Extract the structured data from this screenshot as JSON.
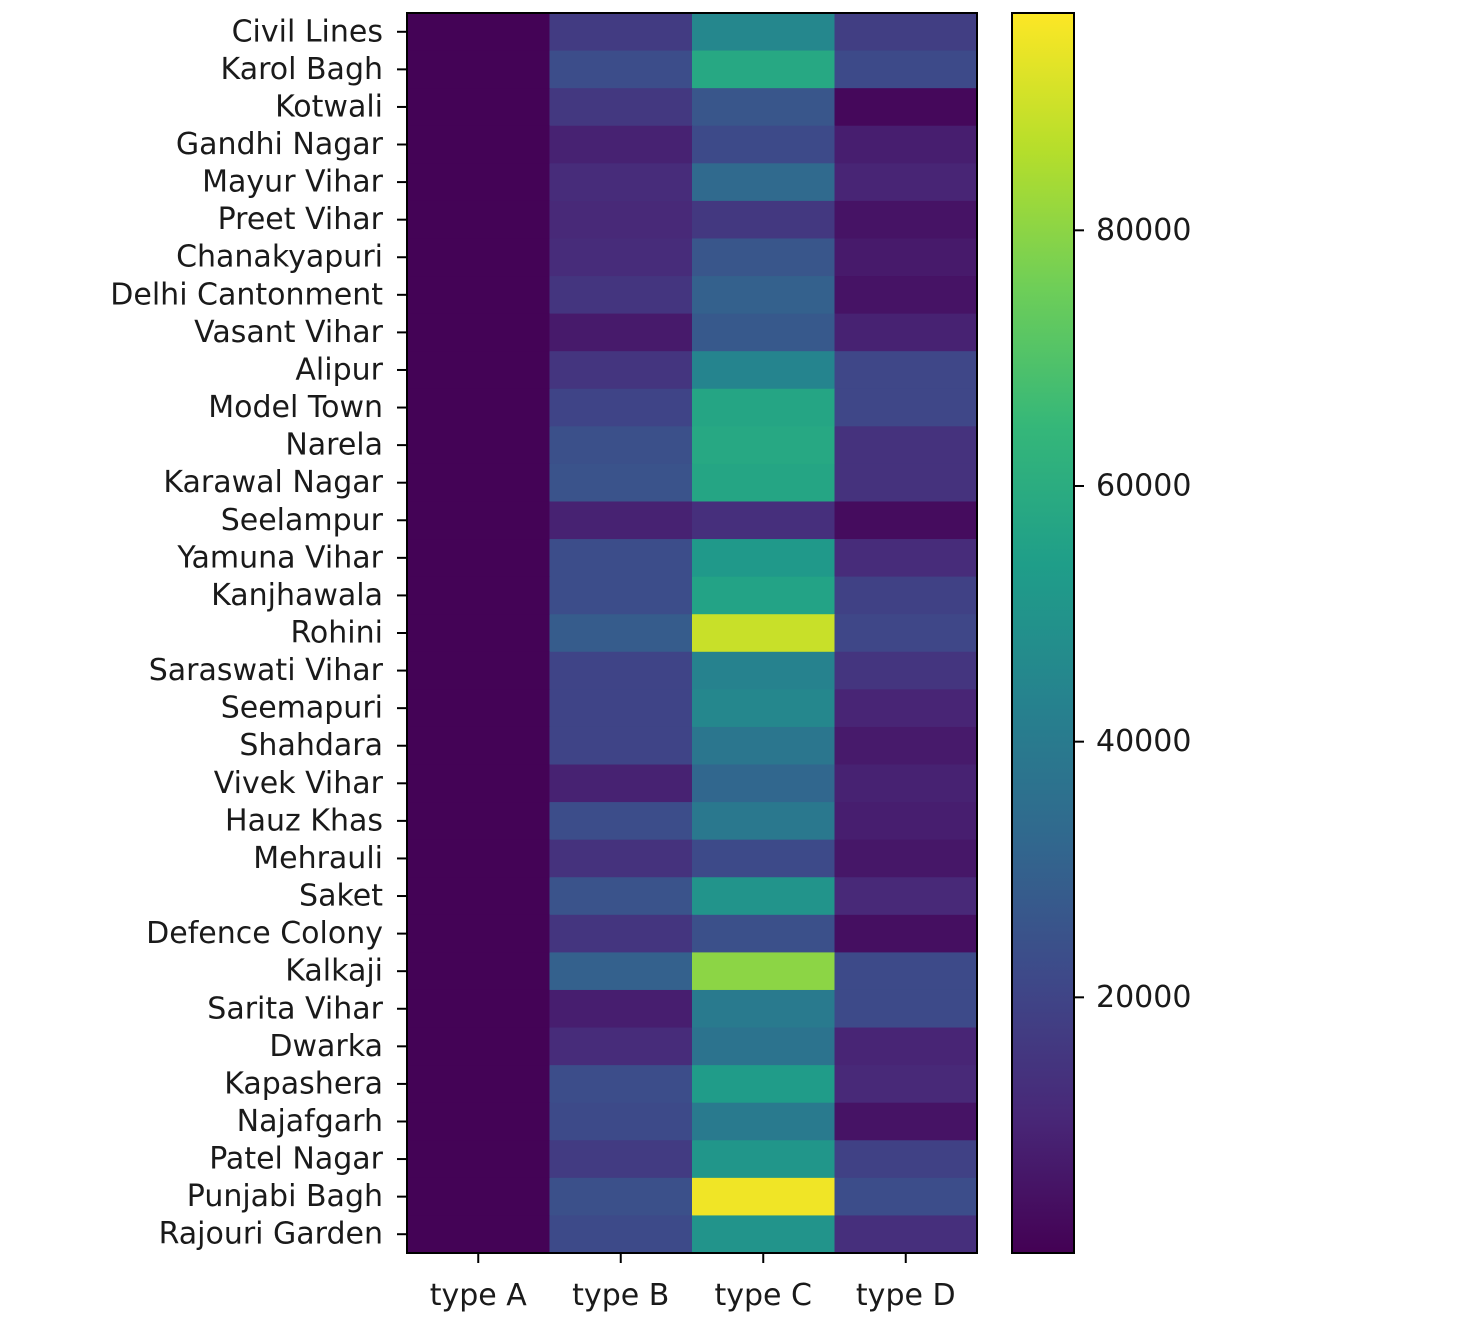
{
  "chart_data": {
    "type": "heatmap",
    "title": "",
    "xlabel": "",
    "ylabel": "",
    "colormap": "viridis",
    "x_categories": [
      "type A",
      "type B",
      "type C",
      "type D"
    ],
    "y_categories": [
      "Civil Lines",
      "Karol Bagh",
      "Kotwali",
      "Gandhi Nagar",
      "Mayur Vihar",
      "Preet Vihar",
      "Chanakyapuri",
      "Delhi Cantonment",
      "Vasant Vihar",
      "Alipur",
      "Model Town",
      "Narela",
      "Karawal Nagar",
      "Seelampur",
      "Yamuna Vihar",
      "Kanjhawala",
      "Rohini",
      "Saraswati Vihar",
      "Seemapuri",
      "Shahdara",
      "Vivek Vihar",
      "Hauz Khas",
      "Mehrauli",
      "Saket",
      "Defence Colony",
      "Kalkaji",
      "Sarita Vihar",
      "Dwarka",
      "Kapashera",
      "Najafgarh",
      "Patel Nagar",
      "Punjabi Bagh",
      "Rajouri Garden"
    ],
    "values": [
      [
        500,
        17000,
        45000,
        18000
      ],
      [
        500,
        23000,
        58000,
        22000
      ],
      [
        500,
        16000,
        26000,
        2000
      ],
      [
        500,
        9000,
        22000,
        8000
      ],
      [
        500,
        12000,
        33000,
        10000
      ],
      [
        500,
        11000,
        16000,
        5000
      ],
      [
        500,
        12000,
        26000,
        7000
      ],
      [
        500,
        15000,
        30000,
        5000
      ],
      [
        500,
        7000,
        27000,
        9000
      ],
      [
        500,
        15000,
        44000,
        21000
      ],
      [
        500,
        20000,
        57000,
        21000
      ],
      [
        500,
        24000,
        58000,
        14000
      ],
      [
        500,
        25000,
        57000,
        14000
      ],
      [
        500,
        9000,
        13000,
        3000
      ],
      [
        500,
        23000,
        52000,
        12000
      ],
      [
        500,
        23000,
        56000,
        19000
      ],
      [
        500,
        28000,
        89000,
        21000
      ],
      [
        500,
        20000,
        43000,
        15000
      ],
      [
        500,
        20000,
        45000,
        10000
      ],
      [
        500,
        20000,
        38000,
        7000
      ],
      [
        500,
        9000,
        32000,
        9000
      ],
      [
        500,
        23000,
        39000,
        8000
      ],
      [
        500,
        14000,
        22000,
        6000
      ],
      [
        500,
        25000,
        50000,
        11000
      ],
      [
        500,
        15000,
        24000,
        4000
      ],
      [
        500,
        30000,
        80000,
        22000
      ],
      [
        500,
        8000,
        40000,
        22000
      ],
      [
        500,
        12000,
        37000,
        10000
      ],
      [
        500,
        23000,
        53000,
        11000
      ],
      [
        500,
        22000,
        40000,
        5000
      ],
      [
        500,
        17000,
        51000,
        19000
      ],
      [
        500,
        24000,
        95000,
        23000
      ],
      [
        500,
        22000,
        50000,
        13000
      ]
    ],
    "colorbar": {
      "range": [
        0,
        97000
      ],
      "ticks": [
        20000,
        40000,
        60000,
        80000
      ],
      "tick_labels": [
        "20000",
        "40000",
        "60000",
        "80000"
      ]
    }
  }
}
